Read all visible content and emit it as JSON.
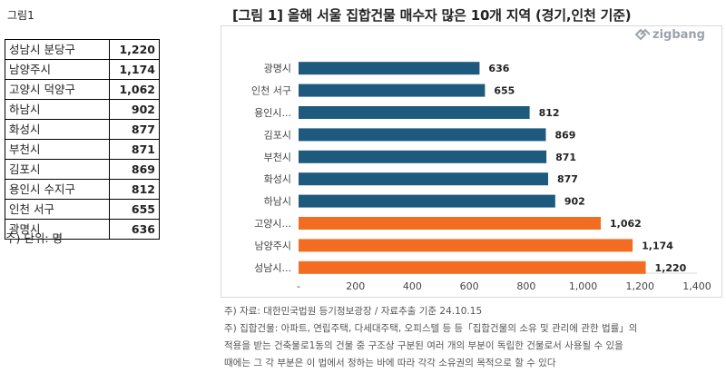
{
  "figure_label": "그림1",
  "table": {
    "rows": [
      {
        "name": "성남시 분당구",
        "value": "1,220"
      },
      {
        "name": "남양주시",
        "value": "1,174"
      },
      {
        "name": "고양시 덕양구",
        "value": "1,062"
      },
      {
        "name": "하남시",
        "value": "902"
      },
      {
        "name": "화성시",
        "value": "877"
      },
      {
        "name": "부천시",
        "value": "871"
      },
      {
        "name": "김포시",
        "value": "869"
      },
      {
        "name": "용인시 수지구",
        "value": "812"
      },
      {
        "name": "인천 서구",
        "value": "655"
      },
      {
        "name": "광명시",
        "value": "636"
      }
    ],
    "unit_note": "주) 단위: 명"
  },
  "brand": "zigbang",
  "colors": {
    "top3": "#f26d22",
    "others": "#1e5a7e",
    "axis": "#d9d9d9",
    "text": "#444444"
  },
  "chart_data": {
    "type": "bar",
    "orientation": "horizontal",
    "title": "[그림 1] 올해 서울 집합건물 매수자 많은 10개 지역 (경기,인천 기준)",
    "categories": [
      "광명시",
      "인천 서구",
      "용인시...",
      "김포시",
      "부천시",
      "화성시",
      "하남시",
      "고양시...",
      "남양주시",
      "성남시..."
    ],
    "values": [
      636,
      655,
      812,
      869,
      871,
      877,
      902,
      1062,
      1174,
      1220
    ],
    "data_labels": [
      "636",
      "655",
      "812",
      "869",
      "871",
      "877",
      "902",
      "1,062",
      "1,174",
      "1,220"
    ],
    "highlight": [
      false,
      false,
      false,
      false,
      false,
      false,
      false,
      true,
      true,
      true
    ],
    "x_ticks": [
      "-",
      "200",
      "400",
      "600",
      "800",
      "1,000",
      "1,200",
      "1,400"
    ],
    "xlim": [
      0,
      1400
    ],
    "grid": false,
    "legend": "none"
  },
  "notes": [
    "주) 자료: 대한민국법원 등기정보광장 / 자료추출 기준 24.10.15",
    "주) 집합건물: 아파트, 연립주택, 다세대주택, 오피스텔 등 등「집합건물의 소유 및 관리에 관한 법률」의",
    "적용을 받는 건축물로1동의 건물 중 구조상 구분된 여러 개의 부분이 독립한 건물로서 사용될 수 있을",
    "때에는 그 각 부분은 이 법에서 정하는 바에 따라 각각 소유권의 목적으로 할 수 있다"
  ]
}
